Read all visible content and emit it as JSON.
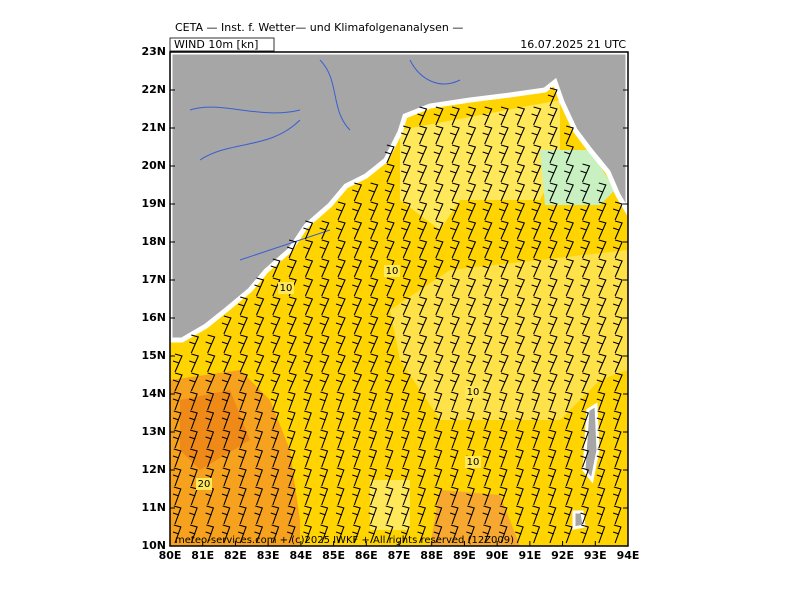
{
  "header": {
    "title": "CETA — Inst. f. Wetter— und Klimafolgenanalysen —",
    "field": "WIND 10m [kn]",
    "time": "16.07.2025 21 UTC"
  },
  "axes": {
    "lat_labels": [
      "10N",
      "11N",
      "12N",
      "13N",
      "14N",
      "15N",
      "16N",
      "17N",
      "18N",
      "19N",
      "20N",
      "21N",
      "22N",
      "23N"
    ],
    "lon_labels": [
      "80E",
      "81E",
      "82E",
      "83E",
      "84E",
      "85E",
      "86E",
      "87E",
      "88E",
      "89E",
      "90E",
      "91E",
      "92E",
      "93E",
      "94E"
    ]
  },
  "contour_labels": [
    "10",
    "10",
    "10",
    "10",
    "20"
  ],
  "footer": "meteo-services.com + (c)2025 IWKF + All rights reserved (12Z009)"
}
